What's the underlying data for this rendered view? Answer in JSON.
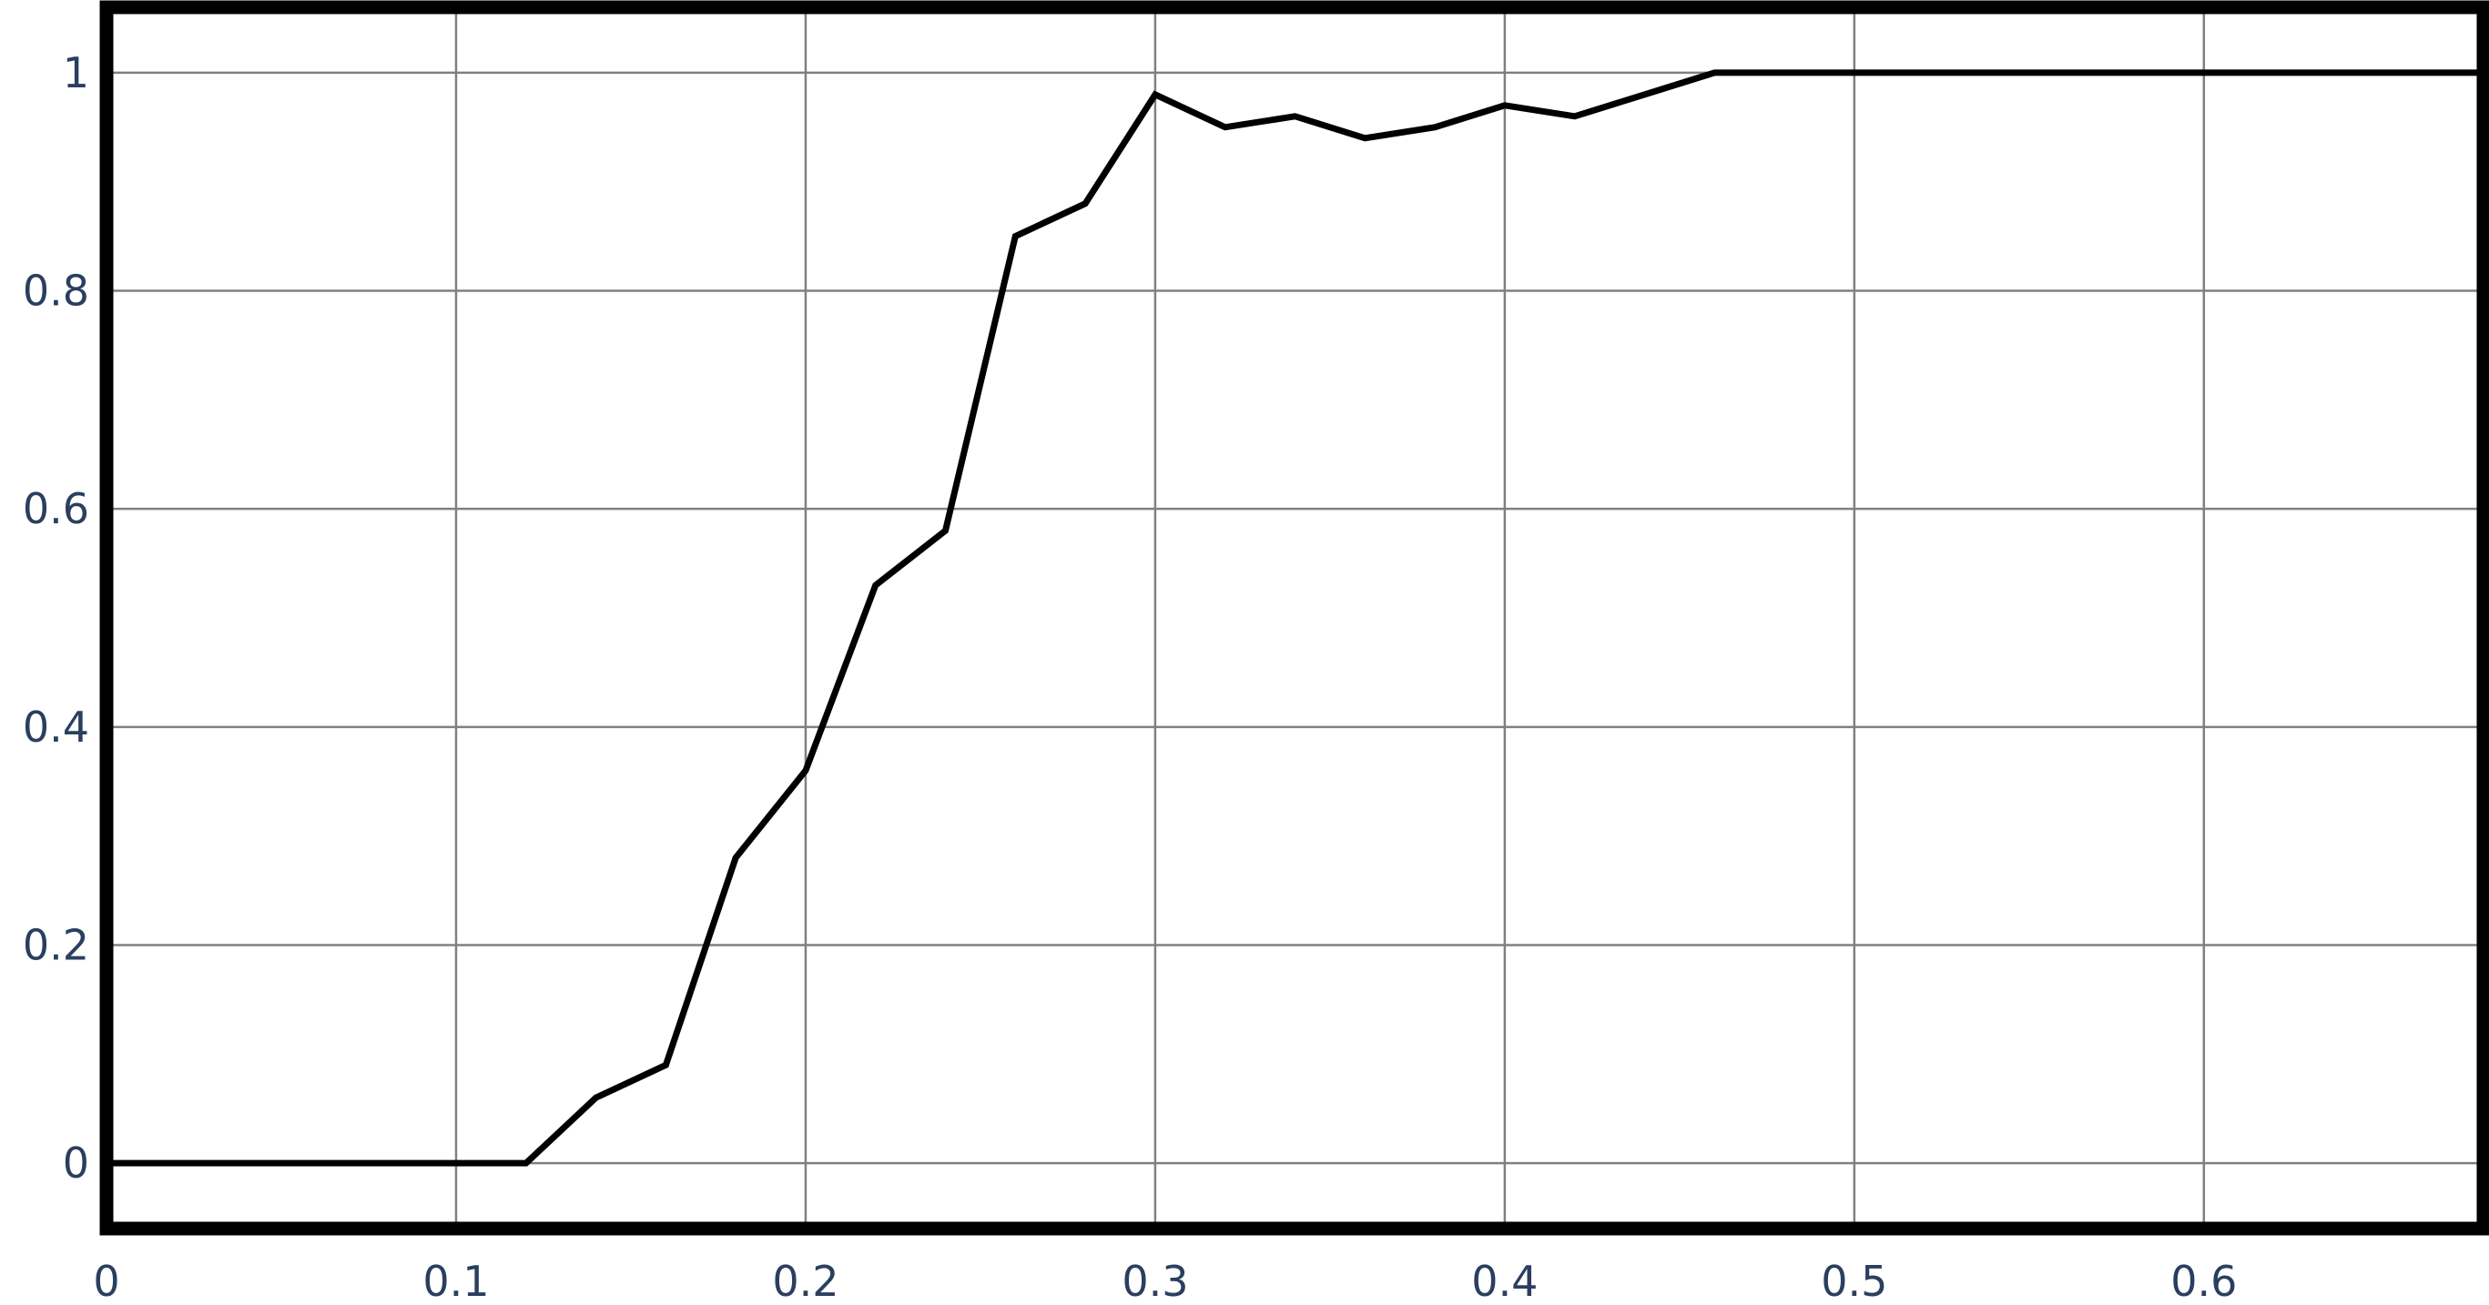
{
  "chart_data": {
    "type": "line",
    "title": "",
    "xlabel": "",
    "ylabel": "",
    "xlim": [
      0,
      0.68
    ],
    "ylim": [
      -0.06,
      1.06
    ],
    "x_ticks": [
      0,
      0.1,
      0.2,
      0.3,
      0.4,
      0.5,
      0.6
    ],
    "x_tick_labels": [
      "0",
      "0.1",
      "0.2",
      "0.3",
      "0.4",
      "0.5",
      "0.6"
    ],
    "y_ticks": [
      0,
      0.2,
      0.4,
      0.6,
      0.8,
      1
    ],
    "y_tick_labels": [
      "0",
      "0.2",
      "0.4",
      "0.6",
      "0.8",
      "1"
    ],
    "grid": true,
    "legend": "none",
    "series": [
      {
        "color": "#000000",
        "x": [
          0,
          0.02,
          0.04,
          0.06,
          0.08,
          0.1,
          0.12,
          0.14,
          0.16,
          0.18,
          0.2,
          0.22,
          0.24,
          0.26,
          0.28,
          0.3,
          0.32,
          0.34,
          0.36,
          0.38,
          0.4,
          0.42,
          0.44,
          0.46,
          0.48,
          0.5,
          0.52,
          0.54,
          0.56,
          0.58,
          0.6,
          0.62,
          0.64,
          0.66,
          0.68
        ],
        "y": [
          0,
          0,
          0,
          0,
          0,
          0,
          0,
          0.06,
          0.09,
          0.28,
          0.36,
          0.53,
          0.58,
          0.85,
          0.88,
          0.98,
          0.95,
          0.96,
          0.94,
          0.95,
          0.97,
          0.96,
          0.98,
          1,
          1,
          1,
          1,
          1,
          1,
          1,
          1,
          1,
          1,
          1,
          1
        ]
      }
    ]
  }
}
